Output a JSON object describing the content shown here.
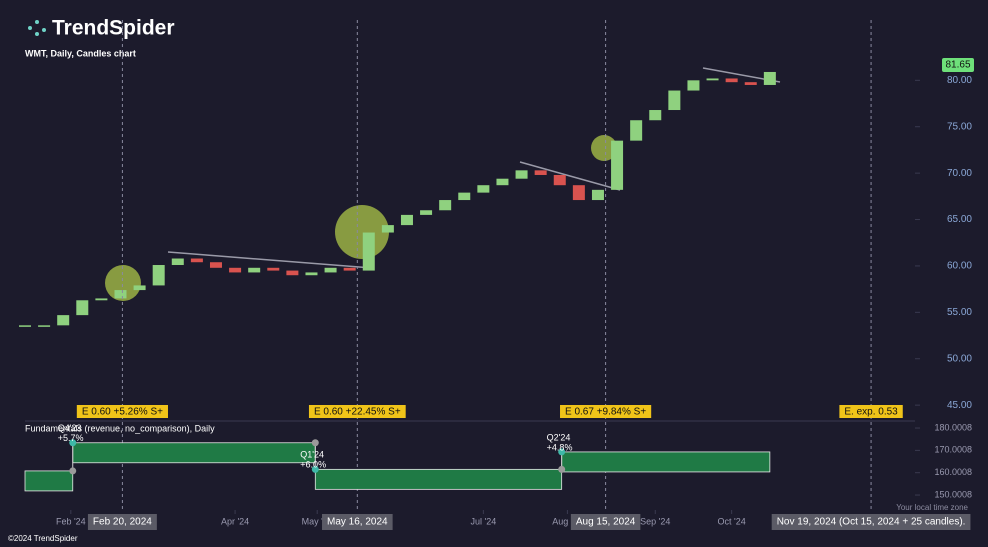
{
  "brand": "TrendSpider",
  "footer": "©2024 TrendSpider",
  "timezone_note": "Your local time zone",
  "chart_data": [
    {
      "type": "candlestick",
      "title": "WMT, Daily, Candles chart",
      "values": [
        53.6,
        53.6,
        54.7,
        56.3,
        56.5,
        57.4,
        57.9,
        60.1,
        60.8,
        60.4,
        59.8,
        59.3,
        59.8,
        59.5,
        59.0,
        59.3,
        59.8,
        59.5,
        63.6,
        64.4,
        65.5,
        66.0,
        67.1,
        67.9,
        68.7,
        69.4,
        70.3,
        69.8,
        68.7,
        67.1,
        68.2,
        73.5,
        75.7,
        76.8,
        78.9,
        80.0,
        80.2,
        79.8,
        79.5,
        80.9
      ],
      "up_color": "#8fd17f",
      "down_color": "#d9534f",
      "last_value": 81.65,
      "xlim": [
        0,
        46.6
      ],
      "xticks": [
        {
          "value": 2.4,
          "label": "Feb '24"
        },
        {
          "value": 11,
          "label": "Apr '24"
        },
        {
          "value": 15.3,
          "label": "May '24"
        },
        {
          "value": 24,
          "label": "Jul '24"
        },
        {
          "value": 28.4,
          "label": "Aug '24"
        },
        {
          "value": 33,
          "label": "Sep '24"
        },
        {
          "value": 37,
          "label": "Oct '24"
        }
      ],
      "ylim": [
        43.4,
        86.5
      ],
      "yticks": [
        {
          "value": 45,
          "label": "45.00"
        },
        {
          "value": 50,
          "label": "50.00"
        },
        {
          "value": 55,
          "label": "55.00"
        },
        {
          "value": 60,
          "label": "60.00"
        },
        {
          "value": 65,
          "label": "65.00"
        },
        {
          "value": 70,
          "label": "70.00"
        },
        {
          "value": 75,
          "label": "75.00"
        },
        {
          "value": 80,
          "label": "80.00"
        }
      ],
      "events": [
        {
          "value": 5.1,
          "label": "Feb 20, 2024",
          "earnings": "E 0.60 +5.26% S+"
        },
        {
          "value": 17.4,
          "label": "May 16, 2024",
          "earnings": "E 0.60 +22.45% S+"
        },
        {
          "value": 30.4,
          "label": "Aug 15, 2024",
          "earnings": "E 0.67 +9.84% S+"
        },
        {
          "value": 44.3,
          "label": "Nov 19, 2024 (Oct 15, 2024 + 25 candles).",
          "earnings": "E. exp. 0.53"
        }
      ]
    },
    {
      "type": "step",
      "title": "Fundamentals (revenue, no_comparison), Daily",
      "color": "#1f7a45",
      "segments": [
        {
          "start": 0,
          "end": 2.5,
          "value": 160.8
        },
        {
          "start": 2.5,
          "end": 15.2,
          "value": 173.4,
          "quarter": "Q4'23",
          "change": "+5.7%"
        },
        {
          "start": 15.2,
          "end": 28.1,
          "value": 161.5,
          "quarter": "Q1'24",
          "change": "+6.0%"
        },
        {
          "start": 28.1,
          "end": 39,
          "value": 169.3,
          "quarter": "Q2'24",
          "change": "+4.8%"
        }
      ],
      "xlim": [
        0,
        46.6
      ],
      "ylim": [
        143.3,
        182.7
      ],
      "yticks": [
        {
          "value": 150.0008,
          "label": "150.0008"
        },
        {
          "value": 160.0008,
          "label": "160.0008"
        },
        {
          "value": 170.0008,
          "label": "170.0008"
        },
        {
          "value": 180.0008,
          "label": "180.0008"
        }
      ]
    }
  ]
}
